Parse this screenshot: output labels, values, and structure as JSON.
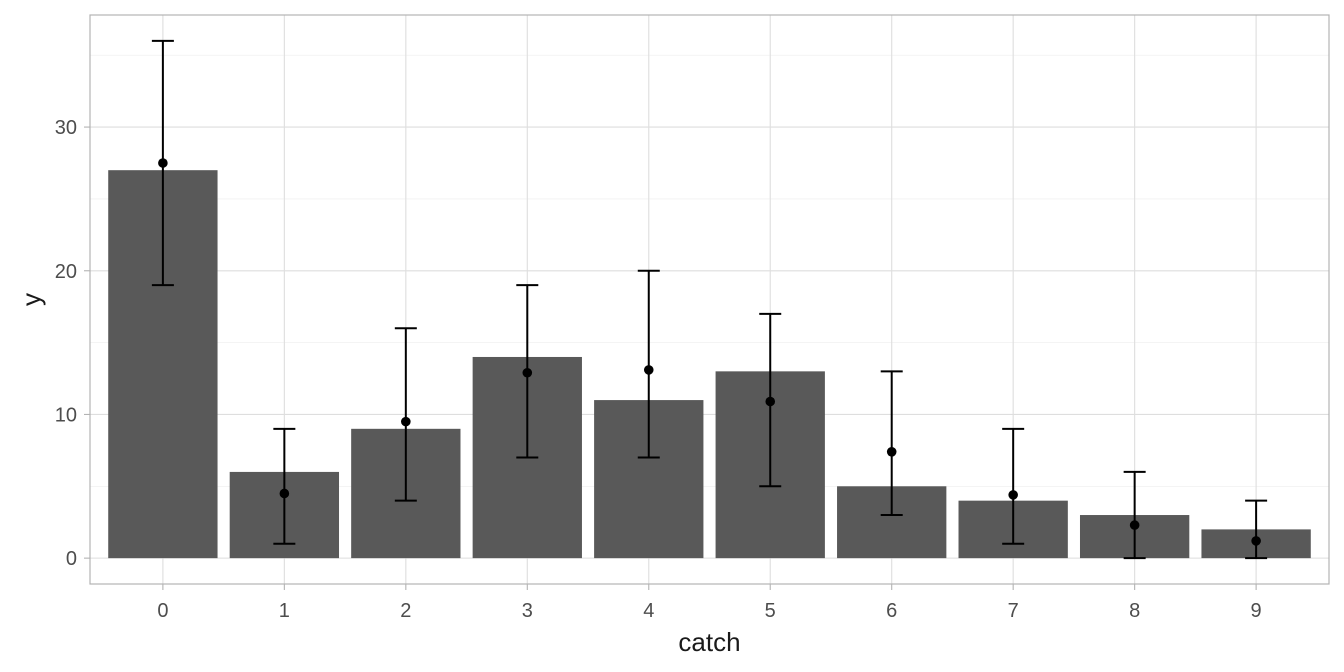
{
  "chart_data": {
    "type": "bar",
    "xlabel": "catch",
    "ylabel": "y",
    "categories": [
      "0",
      "1",
      "2",
      "3",
      "4",
      "5",
      "6",
      "7",
      "8",
      "9"
    ],
    "values": [
      27,
      6,
      9,
      14,
      11,
      13,
      5,
      4,
      3,
      2
    ],
    "points": [
      27.5,
      4.5,
      9.5,
      12.9,
      13.1,
      10.9,
      7.4,
      4.4,
      2.3,
      1.2
    ],
    "error_lower": [
      19,
      1,
      4,
      7,
      7,
      5,
      3,
      1,
      0,
      0
    ],
    "error_upper": [
      36,
      9,
      16,
      19,
      20,
      17,
      13,
      9,
      6,
      4
    ],
    "yticks": [
      0,
      10,
      20,
      30
    ],
    "ylim": [
      -1.8,
      37.8
    ],
    "grid": true,
    "legend": "none",
    "colors": {
      "bar": "#595959",
      "error_bar": "#000000",
      "point": "#000000",
      "grid": "#dedede",
      "panel_border": "#b3b3b3"
    }
  }
}
